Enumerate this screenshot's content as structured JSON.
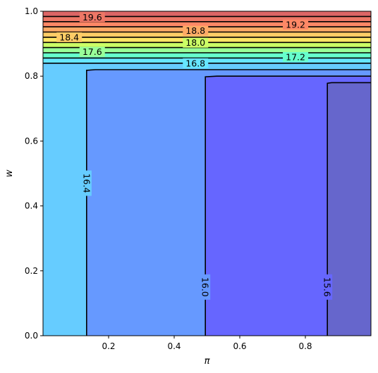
{
  "chart_data": {
    "type": "contour",
    "xlabel": "π",
    "ylabel": "w",
    "xlim": [
      0.0,
      1.0
    ],
    "ylim": [
      0.0,
      1.0
    ],
    "xticks": [
      {
        "value": 0.2,
        "label": "0.2"
      },
      {
        "value": 0.4,
        "label": "0.4"
      },
      {
        "value": 0.6,
        "label": "0.6"
      },
      {
        "value": 0.8,
        "label": "0.8"
      }
    ],
    "yticks": [
      {
        "value": 0.0,
        "label": "0.0"
      },
      {
        "value": 0.2,
        "label": "0.2"
      },
      {
        "value": 0.4,
        "label": "0.4"
      },
      {
        "value": 0.6,
        "label": "0.6"
      },
      {
        "value": 0.8,
        "label": "0.8"
      },
      {
        "value": 1.0,
        "label": "1.0"
      }
    ],
    "regions": [
      {
        "color": "#6666cc",
        "poly": [
          [
            0.867,
            0.0
          ],
          [
            0.867,
            0.778
          ],
          [
            0.88,
            0.78
          ],
          [
            1.0,
            0.78
          ],
          [
            1.0,
            0.0
          ]
        ]
      },
      {
        "color": "#6666ff",
        "poly": [
          [
            0.495,
            0.0
          ],
          [
            0.495,
            0.798
          ],
          [
            0.53,
            0.8
          ],
          [
            1.0,
            0.8
          ],
          [
            1.0,
            0.78
          ],
          [
            0.88,
            0.78
          ],
          [
            0.867,
            0.778
          ],
          [
            0.867,
            0.0
          ]
        ]
      },
      {
        "color": "#6699ff",
        "poly": [
          [
            0.133,
            0.0
          ],
          [
            0.133,
            0.818
          ],
          [
            0.16,
            0.82
          ],
          [
            1.0,
            0.82
          ],
          [
            1.0,
            0.8
          ],
          [
            0.53,
            0.8
          ],
          [
            0.495,
            0.798
          ],
          [
            0.495,
            0.0
          ]
        ]
      },
      {
        "color": "#66ccff",
        "poly": [
          [
            0.0,
            0.0
          ],
          [
            0.0,
            0.84
          ],
          [
            1.0,
            0.84
          ],
          [
            1.0,
            0.82
          ],
          [
            0.16,
            0.82
          ],
          [
            0.133,
            0.818
          ],
          [
            0.133,
            0.0
          ]
        ]
      },
      {
        "color": "#66e6ff",
        "band": [
          0.84,
          0.856
        ]
      },
      {
        "color": "#66ffcc",
        "band": [
          0.856,
          0.872
        ]
      },
      {
        "color": "#99ff99",
        "band": [
          0.872,
          0.888
        ]
      },
      {
        "color": "#ccff66",
        "band": [
          0.888,
          0.904
        ]
      },
      {
        "color": "#ffe666",
        "band": [
          0.904,
          0.92
        ]
      },
      {
        "color": "#ffcc66",
        "band": [
          0.92,
          0.936
        ]
      },
      {
        "color": "#ffaa66",
        "band": [
          0.936,
          0.952
        ]
      },
      {
        "color": "#ff8866",
        "band": [
          0.952,
          0.968
        ]
      },
      {
        "color": "#ee7766",
        "band": [
          0.968,
          0.984
        ]
      },
      {
        "color": "#dd6666",
        "band": [
          0.984,
          1.0
        ]
      }
    ],
    "contours": [
      {
        "level": "15.6",
        "points": [
          [
            0.867,
            0.0
          ],
          [
            0.867,
            0.778
          ],
          [
            0.88,
            0.78
          ],
          [
            1.0,
            0.78
          ]
        ],
        "label_at": [
          0.867,
          0.15
        ],
        "rotate": 90
      },
      {
        "level": "16.0",
        "points": [
          [
            0.495,
            0.0
          ],
          [
            0.495,
            0.798
          ],
          [
            0.53,
            0.8
          ],
          [
            1.0,
            0.8
          ]
        ],
        "label_at": [
          0.495,
          0.15
        ],
        "rotate": 90
      },
      {
        "level": "16.4",
        "points": [
          [
            0.133,
            0.0
          ],
          [
            0.133,
            0.818
          ],
          [
            0.16,
            0.82
          ],
          [
            1.0,
            0.82
          ]
        ],
        "label_at": [
          0.133,
          0.47
        ],
        "rotate": 90
      },
      {
        "level": "16.8",
        "points": [
          [
            0.0,
            0.84
          ],
          [
            1.0,
            0.84
          ]
        ],
        "label_at": [
          0.465,
          0.84
        ],
        "rotate": 0
      },
      {
        "level": "17.2",
        "points": [
          [
            0.0,
            0.856
          ],
          [
            1.0,
            0.856
          ]
        ],
        "label_at": [
          0.77,
          0.859
        ],
        "rotate": 0
      },
      {
        "level": "17.6",
        "points": [
          [
            0.0,
            0.872
          ],
          [
            1.0,
            0.872
          ]
        ],
        "label_at": [
          0.15,
          0.875
        ],
        "rotate": 0
      },
      {
        "level": "18.0",
        "points": [
          [
            0.0,
            0.888
          ],
          [
            1.0,
            0.888
          ]
        ],
        "label_at": [
          0.465,
          0.903
        ],
        "rotate": 0
      },
      {
        "level": "18.4",
        "points": [
          [
            0.0,
            0.904
          ],
          [
            1.0,
            0.904
          ]
        ],
        "label_at": [
          0.08,
          0.92
        ],
        "rotate": 0
      },
      {
        "level": "18.8",
        "points": [
          [
            0.0,
            0.92
          ],
          [
            1.0,
            0.92
          ]
        ],
        "label_at": [
          0.465,
          0.94
        ],
        "rotate": 0
      },
      {
        "level": "19.2",
        "points": [
          [
            0.0,
            0.936
          ],
          [
            1.0,
            0.936
          ]
        ],
        "label_at": [
          0.77,
          0.959
        ],
        "rotate": 0
      },
      {
        "level": "19.6",
        "points": [
          [
            0.0,
            0.952
          ],
          [
            1.0,
            0.952
          ]
        ],
        "label_at": [
          0.15,
          0.982
        ],
        "rotate": 0
      },
      {
        "level": "",
        "points": [
          [
            0.0,
            0.968
          ],
          [
            1.0,
            0.968
          ]
        ]
      },
      {
        "level": "",
        "points": [
          [
            0.0,
            0.984
          ],
          [
            1.0,
            0.984
          ]
        ]
      }
    ]
  }
}
